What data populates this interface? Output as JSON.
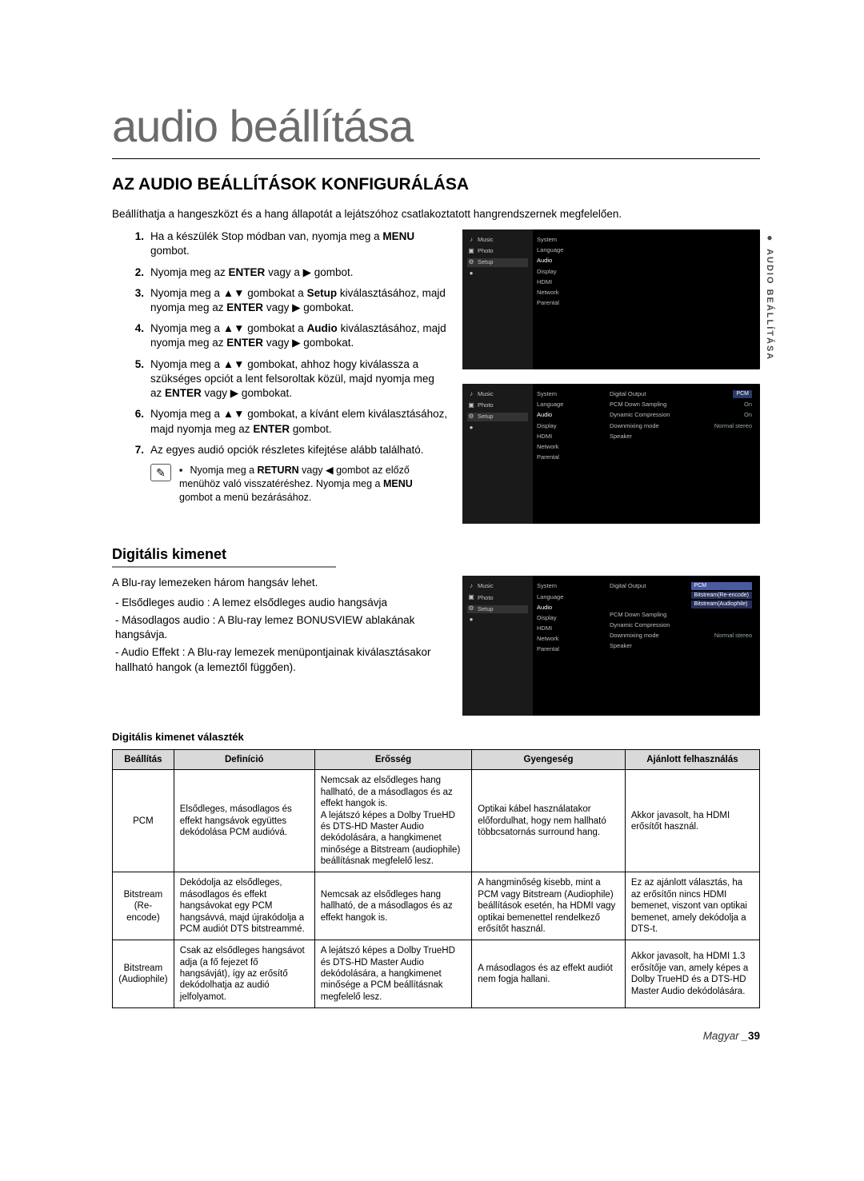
{
  "page": {
    "title": "audio beállítása",
    "section": "AZ AUDIO BEÁLLÍTÁSOK KONFIGURÁLÁSA",
    "intro": "Beállíthatja a hangeszközt és a hang állapotát a lejátszóhoz csatlakoztatott hangrendszernek megfelelően.",
    "sideTab": "AUDIO BEÁLLÍTÁSA",
    "footerLang": "Magyar",
    "footerPage": "39"
  },
  "steps": [
    {
      "n": "1.",
      "text": "Ha a készülék Stop módban van, nyomja meg a MENU gombot."
    },
    {
      "n": "2.",
      "text": "Nyomja meg az ENTER vagy a ▶ gombot."
    },
    {
      "n": "3.",
      "text": "Nyomja meg a ▲▼ gombokat a Setup kiválasztásához, majd nyomja meg az ENTER vagy ▶ gombokat."
    },
    {
      "n": "4.",
      "text": "Nyomja meg a ▲▼ gombokat a Audio kiválasztásához, majd nyomja meg az ENTER vagy ▶ gombokat."
    },
    {
      "n": "5.",
      "text": "Nyomja meg a ▲▼ gombokat, ahhoz hogy kiválassza a szükséges opciót a lent felsoroltak közül, majd nyomja meg az ENTER vagy ▶ gombokat."
    },
    {
      "n": "6.",
      "text": "Nyomja meg a ▲▼ gombokat, a kívánt elem kiválasztásához, majd nyomja meg az ENTER gombot."
    },
    {
      "n": "7.",
      "text": "Az egyes audió opciók részletes kifejtése alább található."
    }
  ],
  "note": "Nyomja meg a RETURN vagy ◀ gombot az előző menühöz való visszatéréshez. Nyomja meg a MENU gombot a menü bezárásához.",
  "osd": {
    "left": [
      {
        "icon": "♪",
        "label": "Music"
      },
      {
        "icon": "▣",
        "label": "Photo"
      },
      {
        "icon": "⚙",
        "label": "Setup",
        "selected": true
      },
      {
        "icon": "●",
        "label": ""
      }
    ],
    "mid": [
      "System",
      "Language",
      "Audio",
      "Display",
      "HDMI",
      "Network",
      "Parental"
    ],
    "midSelected": "Audio",
    "screen2Options": [
      {
        "k": "Digital Output",
        "v": "PCM"
      },
      {
        "k": "PCM Down Sampling",
        "v": "On"
      },
      {
        "k": "Dynamic Compression",
        "v": "On"
      },
      {
        "k": "Downmixing mode",
        "v": "Normal stereo"
      },
      {
        "k": "Speaker",
        "v": ""
      }
    ],
    "screen3Options": [
      {
        "k": "Digital Output",
        "v": "PCM",
        "expanded": true
      },
      {
        "k": "PCM Down Sampling",
        "v": ""
      },
      {
        "k": "Dynamic Compression",
        "v": ""
      },
      {
        "k": "Downmixing mode",
        "v": "Normal stereo"
      },
      {
        "k": "Speaker",
        "v": ""
      }
    ],
    "dropdown": [
      "PCM",
      "Bitstream(Re-encode)",
      "Bitstream(Audiophile)"
    ]
  },
  "digital": {
    "heading": "Digitális kimenet",
    "intro": "A Blu-ray lemezeken három hangsáv lehet.",
    "bullets": [
      "- Elsődleges audio : A lemez elsődleges audio hangsávja",
      "- Másodlagos audio : A Blu-ray lemez BONUSVIEW ablakának hangsávja.",
      "- Audio Effekt : A Blu-ray lemezek menüpontjainak kiválasztásakor hallható hangok (a lemeztől függően)."
    ],
    "tableTitle": "Digitális kimenet választék"
  },
  "table": {
    "headers": [
      "Beállítás",
      "Definíció",
      "Erősség",
      "Gyengeség",
      "Ajánlott felhasználás"
    ],
    "rows": [
      {
        "c0": "PCM",
        "c1": "Elsődleges, másodlagos és effekt hangsávok együttes dekódolása PCM audióvá.",
        "c2": "Nemcsak az elsődleges hang hallható, de a másodlagos és az effekt hangok is.\nA lejátszó képes a Dolby TrueHD és DTS-HD Master Audio dekódolására, a hangkimenet minősége a Bitstream (audiophile) beállításnak megfelelő lesz.",
        "c3": "Optikai kábel használatakor előfordulhat, hogy nem hallható többcsatornás surround hang.",
        "c4": "Akkor javasolt, ha HDMI erősítőt használ."
      },
      {
        "c0": "Bitstream\n(Re-encode)",
        "c1": "Dekódolja az elsődleges, másodlagos és effekt hangsávokat egy PCM hangsávvá, majd újrakódolja a PCM audiót DTS bitstreammé.",
        "c2": "Nemcsak az elsődleges hang hallható, de a másodlagos és az effekt hangok is.",
        "c3": "A hangminőség kisebb, mint a PCM vagy Bitstream (Audiophile) beállítások esetén, ha HDMI vagy optikai bemenettel rendelkező erősítőt használ.",
        "c4": "Ez az ajánlott választás, ha az erősítőn nincs HDMI bemenet, viszont van optikai bemenet, amely dekódolja a DTS-t."
      },
      {
        "c0": "Bitstream\n(Audiophile)",
        "c1": "Csak az elsődleges hangsávot adja (a fő fejezet fő hangsávját), így az erősítő dekódolhatja az audió jelfolyamot.",
        "c2": "A lejátszó képes a Dolby TrueHD és DTS-HD Master Audio dekódolására, a hangkimenet minősége a PCM beállításnak megfelelő lesz.",
        "c3": "A másodlagos és az effekt audiót nem fogja hallani.",
        "c4": "Akkor javasolt, ha HDMI 1.3 erősítője van, amely képes a Dolby TrueHD és a DTS-HD Master Audio dekódolására."
      }
    ]
  }
}
